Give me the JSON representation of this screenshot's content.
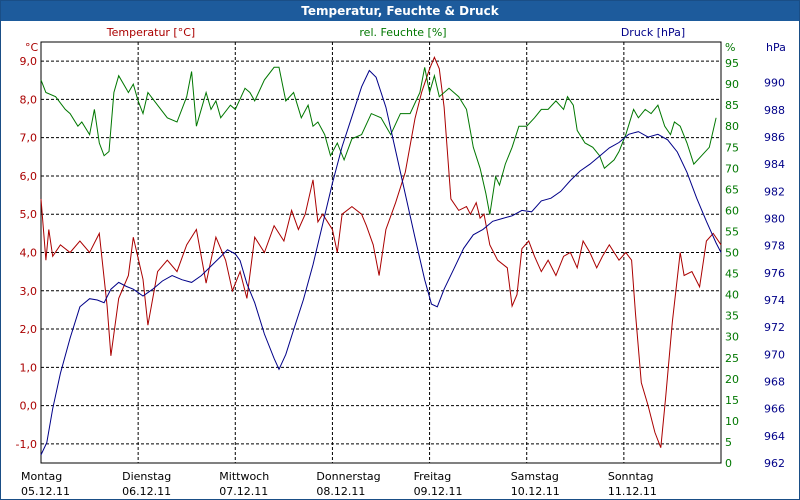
{
  "window": {
    "title": "Temperatur, Feuchte & Druck"
  },
  "chart_data": {
    "type": "line",
    "title": "Temperatur, Feuchte & Druck",
    "grid": true,
    "x_labels": [
      {
        "day": "Montag",
        "date": "05.12.11"
      },
      {
        "day": "Dienstag",
        "date": "06.12.11"
      },
      {
        "day": "Mittwoch",
        "date": "07.12.11"
      },
      {
        "day": "Donnerstag",
        "date": "08.12.11"
      },
      {
        "day": "Freitag",
        "date": "09.12.11"
      },
      {
        "day": "Samstag",
        "date": "10.12.11"
      },
      {
        "day": "Sonntag",
        "date": "11.12.11"
      }
    ],
    "xlim": [
      0,
      7
    ],
    "axes": {
      "temperature": {
        "label": "Temperatur [°C]",
        "unit": "°C",
        "color": "#aa0000",
        "ylim": [
          -1.5,
          9.5
        ],
        "ticks": [
          "-1,0",
          "0,0",
          "1,0",
          "2,0",
          "3,0",
          "4,0",
          "5,0",
          "6,0",
          "7,0",
          "8,0",
          "9,0"
        ]
      },
      "humidity": {
        "label": "rel. Feuchte [%]",
        "unit": "%",
        "color": "#007700",
        "ylim": [
          0,
          100
        ],
        "ticks": [
          "0",
          "5",
          "10",
          "15",
          "20",
          "25",
          "30",
          "35",
          "40",
          "45",
          "50",
          "55",
          "60",
          "65",
          "70",
          "75",
          "80",
          "85",
          "90",
          "95"
        ]
      },
      "pressure": {
        "label": "Druck [hPa]",
        "unit": "hPa",
        "color": "#000088",
        "ylim": [
          962,
          993
        ],
        "ticks": [
          "962",
          "964",
          "966",
          "968",
          "970",
          "972",
          "974",
          "976",
          "978",
          "980",
          "982",
          "984",
          "986",
          "988",
          "990"
        ]
      }
    },
    "series": [
      {
        "name": "Temperatur [°C]",
        "axis": "temperature",
        "color": "#aa0000",
        "points": [
          [
            0,
            5.4
          ],
          [
            0.05,
            3.8
          ],
          [
            0.08,
            4.6
          ],
          [
            0.12,
            3.9
          ],
          [
            0.2,
            4.2
          ],
          [
            0.3,
            4.0
          ],
          [
            0.4,
            4.3
          ],
          [
            0.5,
            4.0
          ],
          [
            0.6,
            4.5
          ],
          [
            0.68,
            2.6
          ],
          [
            0.72,
            1.3
          ],
          [
            0.8,
            2.8
          ],
          [
            0.9,
            3.4
          ],
          [
            0.95,
            4.4
          ],
          [
            1.05,
            3.3
          ],
          [
            1.1,
            2.1
          ],
          [
            1.2,
            3.5
          ],
          [
            1.3,
            3.8
          ],
          [
            1.4,
            3.5
          ],
          [
            1.5,
            4.2
          ],
          [
            1.6,
            4.6
          ],
          [
            1.7,
            3.2
          ],
          [
            1.8,
            4.4
          ],
          [
            1.9,
            3.8
          ],
          [
            1.97,
            3.0
          ],
          [
            2.05,
            3.5
          ],
          [
            2.12,
            2.8
          ],
          [
            2.2,
            4.4
          ],
          [
            2.3,
            4.0
          ],
          [
            2.4,
            4.7
          ],
          [
            2.5,
            4.3
          ],
          [
            2.58,
            5.1
          ],
          [
            2.65,
            4.6
          ],
          [
            2.72,
            5.0
          ],
          [
            2.8,
            5.9
          ],
          [
            2.85,
            4.8
          ],
          [
            2.9,
            5.0
          ],
          [
            3.0,
            4.6
          ],
          [
            3.05,
            4.0
          ],
          [
            3.1,
            5.0
          ],
          [
            3.2,
            5.2
          ],
          [
            3.3,
            5.0
          ],
          [
            3.35,
            4.7
          ],
          [
            3.42,
            4.2
          ],
          [
            3.48,
            3.4
          ],
          [
            3.55,
            4.6
          ],
          [
            3.65,
            5.3
          ],
          [
            3.75,
            6.1
          ],
          [
            3.85,
            7.5
          ],
          [
            3.92,
            8.2
          ],
          [
            4.0,
            8.8
          ],
          [
            4.05,
            9.1
          ],
          [
            4.1,
            8.8
          ],
          [
            4.15,
            7.8
          ],
          [
            4.22,
            5.4
          ],
          [
            4.3,
            5.1
          ],
          [
            4.38,
            5.2
          ],
          [
            4.42,
            5.0
          ],
          [
            4.48,
            5.3
          ],
          [
            4.52,
            4.9
          ],
          [
            4.56,
            5.0
          ],
          [
            4.62,
            4.2
          ],
          [
            4.7,
            3.8
          ],
          [
            4.8,
            3.6
          ],
          [
            4.85,
            2.6
          ],
          [
            4.9,
            2.9
          ],
          [
            4.95,
            4.1
          ],
          [
            5.02,
            4.3
          ],
          [
            5.08,
            3.9
          ],
          [
            5.15,
            3.5
          ],
          [
            5.22,
            3.8
          ],
          [
            5.3,
            3.4
          ],
          [
            5.38,
            3.9
          ],
          [
            5.45,
            4.0
          ],
          [
            5.52,
            3.6
          ],
          [
            5.58,
            4.3
          ],
          [
            5.65,
            4.0
          ],
          [
            5.72,
            3.6
          ],
          [
            5.78,
            3.9
          ],
          [
            5.85,
            4.2
          ],
          [
            5.95,
            3.8
          ],
          [
            6.02,
            4.0
          ],
          [
            6.08,
            3.8
          ],
          [
            6.12,
            2.4
          ],
          [
            6.18,
            0.6
          ],
          [
            6.25,
            0.0
          ],
          [
            6.32,
            -0.7
          ],
          [
            6.38,
            -1.1
          ],
          [
            6.43,
            0.2
          ],
          [
            6.5,
            2.2
          ],
          [
            6.58,
            4.0
          ],
          [
            6.62,
            3.4
          ],
          [
            6.7,
            3.5
          ],
          [
            6.78,
            3.1
          ],
          [
            6.85,
            4.3
          ],
          [
            6.92,
            4.5
          ],
          [
            7.0,
            4.2
          ]
        ]
      },
      {
        "name": "rel. Feuchte [%]",
        "axis": "humidity",
        "color": "#007700",
        "points": [
          [
            0,
            91
          ],
          [
            0.05,
            88
          ],
          [
            0.15,
            87
          ],
          [
            0.25,
            84
          ],
          [
            0.3,
            83
          ],
          [
            0.38,
            80
          ],
          [
            0.42,
            81
          ],
          [
            0.5,
            78
          ],
          [
            0.55,
            84
          ],
          [
            0.6,
            76
          ],
          [
            0.65,
            73
          ],
          [
            0.7,
            74
          ],
          [
            0.75,
            88
          ],
          [
            0.8,
            92
          ],
          [
            0.9,
            88
          ],
          [
            0.95,
            90
          ],
          [
            1.0,
            86
          ],
          [
            1.05,
            83
          ],
          [
            1.1,
            88
          ],
          [
            1.2,
            85
          ],
          [
            1.3,
            82
          ],
          [
            1.4,
            81
          ],
          [
            1.5,
            87
          ],
          [
            1.55,
            93
          ],
          [
            1.6,
            80
          ],
          [
            1.7,
            88
          ],
          [
            1.75,
            84
          ],
          [
            1.8,
            86
          ],
          [
            1.85,
            82
          ],
          [
            1.95,
            85
          ],
          [
            2.0,
            84
          ],
          [
            2.1,
            89
          ],
          [
            2.15,
            88
          ],
          [
            2.2,
            86
          ],
          [
            2.3,
            91
          ],
          [
            2.4,
            94
          ],
          [
            2.45,
            94
          ],
          [
            2.52,
            86
          ],
          [
            2.6,
            88
          ],
          [
            2.68,
            82
          ],
          [
            2.75,
            85
          ],
          [
            2.8,
            80
          ],
          [
            2.85,
            81
          ],
          [
            2.92,
            78
          ],
          [
            2.98,
            73
          ],
          [
            3.05,
            76
          ],
          [
            3.12,
            72
          ],
          [
            3.2,
            77
          ],
          [
            3.3,
            78
          ],
          [
            3.4,
            83
          ],
          [
            3.5,
            82
          ],
          [
            3.6,
            78
          ],
          [
            3.7,
            83
          ],
          [
            3.8,
            83
          ],
          [
            3.9,
            88
          ],
          [
            3.95,
            94
          ],
          [
            4.0,
            88
          ],
          [
            4.05,
            92
          ],
          [
            4.1,
            87
          ],
          [
            4.2,
            89
          ],
          [
            4.3,
            87
          ],
          [
            4.38,
            84
          ],
          [
            4.45,
            75
          ],
          [
            4.52,
            70
          ],
          [
            4.58,
            64
          ],
          [
            4.62,
            59
          ],
          [
            4.68,
            68
          ],
          [
            4.72,
            66
          ],
          [
            4.78,
            71
          ],
          [
            4.85,
            75
          ],
          [
            4.92,
            80
          ],
          [
            5.0,
            80
          ],
          [
            5.08,
            82
          ],
          [
            5.15,
            84
          ],
          [
            5.22,
            84
          ],
          [
            5.3,
            86
          ],
          [
            5.38,
            84
          ],
          [
            5.42,
            87
          ],
          [
            5.48,
            85
          ],
          [
            5.52,
            79
          ],
          [
            5.6,
            76
          ],
          [
            5.68,
            75
          ],
          [
            5.75,
            73
          ],
          [
            5.8,
            70
          ],
          [
            5.9,
            72
          ],
          [
            5.95,
            74
          ],
          [
            6.02,
            78
          ],
          [
            6.1,
            84
          ],
          [
            6.15,
            82
          ],
          [
            6.22,
            84
          ],
          [
            6.28,
            83
          ],
          [
            6.35,
            85
          ],
          [
            6.42,
            80
          ],
          [
            6.48,
            78
          ],
          [
            6.52,
            81
          ],
          [
            6.58,
            80
          ],
          [
            6.65,
            76
          ],
          [
            6.72,
            71
          ],
          [
            6.8,
            73
          ],
          [
            6.88,
            75
          ],
          [
            6.95,
            82
          ]
        ]
      },
      {
        "name": "Druck [hPa]",
        "axis": "pressure",
        "color": "#000088",
        "points": [
          [
            0,
            962.6
          ],
          [
            0.06,
            963.5
          ],
          [
            0.12,
            966.0
          ],
          [
            0.2,
            968.6
          ],
          [
            0.3,
            971.2
          ],
          [
            0.4,
            973.5
          ],
          [
            0.5,
            974.1
          ],
          [
            0.58,
            974.0
          ],
          [
            0.65,
            973.8
          ],
          [
            0.72,
            974.8
          ],
          [
            0.8,
            975.3
          ],
          [
            0.88,
            975.0
          ],
          [
            0.95,
            974.8
          ],
          [
            1.05,
            974.3
          ],
          [
            1.15,
            974.8
          ],
          [
            1.25,
            975.4
          ],
          [
            1.35,
            975.8
          ],
          [
            1.45,
            975.5
          ],
          [
            1.55,
            975.3
          ],
          [
            1.65,
            975.8
          ],
          [
            1.75,
            976.5
          ],
          [
            1.85,
            977.2
          ],
          [
            1.92,
            977.7
          ],
          [
            2.0,
            977.4
          ],
          [
            2.05,
            976.9
          ],
          [
            2.12,
            975.2
          ],
          [
            2.2,
            973.8
          ],
          [
            2.3,
            971.5
          ],
          [
            2.4,
            969.7
          ],
          [
            2.45,
            968.9
          ],
          [
            2.52,
            970.0
          ],
          [
            2.6,
            971.8
          ],
          [
            2.7,
            974.0
          ],
          [
            2.8,
            976.6
          ],
          [
            2.9,
            979.6
          ],
          [
            3.0,
            982.6
          ],
          [
            3.1,
            985.3
          ],
          [
            3.2,
            987.5
          ],
          [
            3.3,
            989.7
          ],
          [
            3.38,
            990.9
          ],
          [
            3.45,
            990.4
          ],
          [
            3.55,
            988.2
          ],
          [
            3.65,
            985.0
          ],
          [
            3.75,
            981.8
          ],
          [
            3.85,
            978.6
          ],
          [
            3.95,
            975.5
          ],
          [
            4.02,
            973.7
          ],
          [
            4.08,
            973.5
          ],
          [
            4.15,
            974.8
          ],
          [
            4.25,
            976.3
          ],
          [
            4.35,
            977.8
          ],
          [
            4.45,
            978.8
          ],
          [
            4.55,
            979.2
          ],
          [
            4.65,
            979.8
          ],
          [
            4.75,
            980.0
          ],
          [
            4.85,
            980.2
          ],
          [
            4.95,
            980.6
          ],
          [
            5.05,
            980.5
          ],
          [
            5.15,
            981.3
          ],
          [
            5.25,
            981.5
          ],
          [
            5.35,
            982.0
          ],
          [
            5.45,
            982.8
          ],
          [
            5.55,
            983.5
          ],
          [
            5.65,
            984.0
          ],
          [
            5.75,
            984.6
          ],
          [
            5.85,
            985.2
          ],
          [
            5.95,
            985.6
          ],
          [
            6.05,
            986.2
          ],
          [
            6.15,
            986.4
          ],
          [
            6.25,
            986.0
          ],
          [
            6.35,
            986.2
          ],
          [
            6.45,
            985.8
          ],
          [
            6.55,
            984.9
          ],
          [
            6.65,
            983.4
          ],
          [
            6.75,
            981.5
          ],
          [
            6.85,
            979.8
          ],
          [
            6.95,
            978.2
          ],
          [
            7.0,
            977.5
          ]
        ]
      }
    ]
  }
}
